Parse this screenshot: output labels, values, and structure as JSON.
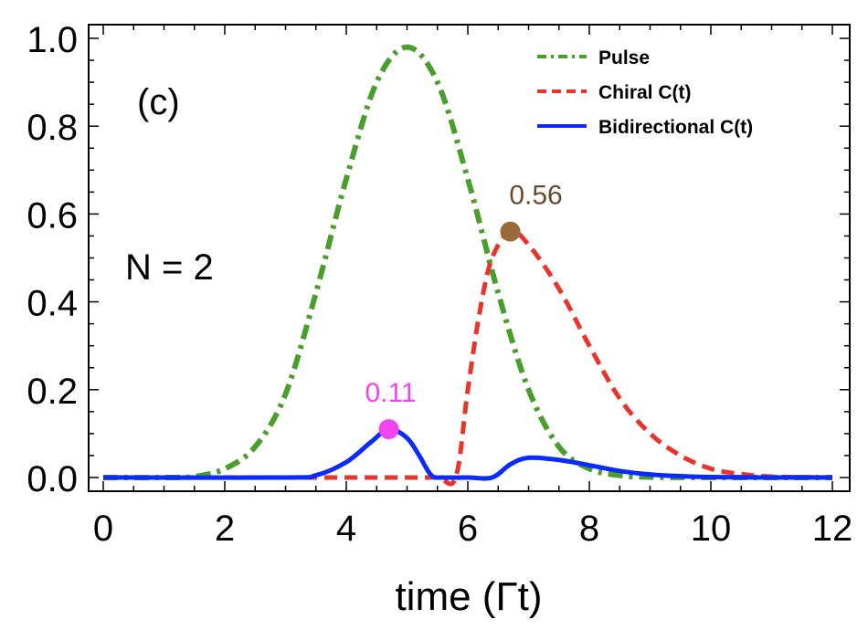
{
  "chart_data": {
    "type": "line",
    "xlabel": "time (Γt)",
    "ylabel": "",
    "xlim": [
      0,
      12
    ],
    "ylim": [
      0,
      1.0
    ],
    "x_ticks": [
      "0",
      "2",
      "4",
      "6",
      "8",
      "10",
      "12"
    ],
    "y_ticks": [
      "0.0",
      "0.2",
      "0.4",
      "0.6",
      "0.8",
      "1.0"
    ],
    "panel_label": "(c)",
    "annotation": "N = 2",
    "legend": [
      {
        "name": "Pulse",
        "color": "#4a9e2c",
        "style": "dashdot"
      },
      {
        "name": "Chiral C(t)",
        "color": "#e8342a",
        "style": "dashed"
      },
      {
        "name": "Bidirectional C(t)",
        "color": "#0a2aff",
        "style": "solid"
      }
    ],
    "series": [
      {
        "name": "Pulse",
        "color": "#4a9e2c",
        "x": [
          0,
          1,
          1.5,
          2,
          2.5,
          3,
          3.5,
          4,
          4.5,
          5,
          5.5,
          6,
          6.5,
          7,
          7.5,
          8,
          8.5,
          9,
          10,
          11,
          12
        ],
        "y": [
          0,
          0,
          0.002,
          0.02,
          0.07,
          0.19,
          0.42,
          0.68,
          0.9,
          0.98,
          0.9,
          0.68,
          0.42,
          0.2,
          0.07,
          0.02,
          0.005,
          0.001,
          0,
          0,
          0
        ]
      },
      {
        "name": "Chiral C(t)",
        "color": "#e8342a",
        "x": [
          0,
          4,
          5,
          5.5,
          5.8,
          6.0,
          6.2,
          6.4,
          6.7,
          7.0,
          7.5,
          8.0,
          8.5,
          9.0,
          9.5,
          10,
          10.5,
          11,
          12
        ],
        "y": [
          0,
          0,
          0,
          0,
          0,
          0.2,
          0.38,
          0.5,
          0.56,
          0.53,
          0.43,
          0.3,
          0.18,
          0.1,
          0.05,
          0.02,
          0.008,
          0.002,
          0
        ]
      },
      {
        "name": "Bidirectional C(t)",
        "color": "#0a2aff",
        "x": [
          0,
          3,
          3.5,
          4,
          4.4,
          4.7,
          5.0,
          5.2,
          5.4,
          5.6,
          6.0,
          6.4,
          6.7,
          7.0,
          7.5,
          8.0,
          8.5,
          9.0,
          9.5,
          10,
          11,
          12
        ],
        "y": [
          0,
          0,
          0.005,
          0.035,
          0.08,
          0.11,
          0.09,
          0.05,
          0.005,
          0,
          0,
          0,
          0.03,
          0.045,
          0.04,
          0.028,
          0.015,
          0.007,
          0.003,
          0.001,
          0,
          0
        ]
      }
    ],
    "points": [
      {
        "x": 4.7,
        "y": 0.11,
        "label": "0.11",
        "color": "#f045ef",
        "label_color": "#f045ef"
      },
      {
        "x": 6.7,
        "y": 0.56,
        "label": "0.56",
        "color": "#9a6a3a",
        "label_color": "#6b4a2e"
      }
    ]
  }
}
